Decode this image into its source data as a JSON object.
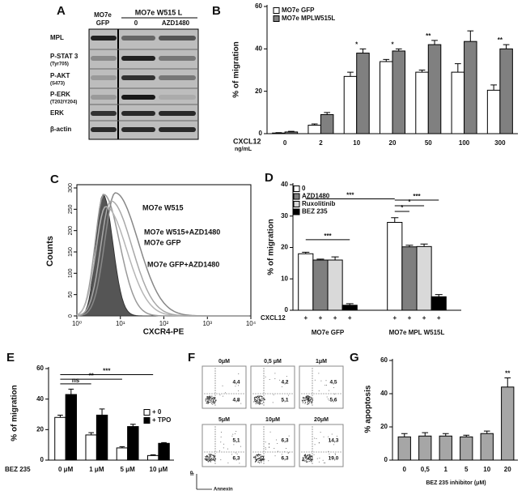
{
  "chart_data": [
    {
      "type": "bar",
      "panel": "B",
      "ylabel": "% of migration",
      "xlabel": "CXCL12",
      "xunit": "ng/mL",
      "categories": [
        "0",
        "2",
        "10",
        "20",
        "50",
        "100",
        "300"
      ],
      "series": [
        {
          "name": "MO7e GFP",
          "color": "#ffffff",
          "values": [
            0.3,
            4,
            27,
            34,
            29,
            29,
            20.5
          ],
          "errors": [
            0.2,
            0.6,
            2,
            1,
            1,
            4,
            2.5
          ]
        },
        {
          "name": "MO7e MPLW515L",
          "color": "#808080",
          "values": [
            0.8,
            9,
            38,
            39,
            42,
            43.5,
            40
          ],
          "errors": [
            0.3,
            1,
            2,
            1,
            2,
            5,
            2
          ]
        }
      ],
      "ylim": [
        0,
        60
      ],
      "yticks": [
        0,
        20,
        40,
        60
      ],
      "annotations": [
        {
          "text": "*",
          "category": "10"
        },
        {
          "text": "*",
          "category": "20"
        },
        {
          "text": "**",
          "category": "50"
        },
        {
          "text": "**",
          "category": "300"
        }
      ]
    },
    {
      "type": "bar",
      "panel": "D",
      "ylabel": "% of migration",
      "row_label": "CXCL12",
      "row_marks": [
        "+",
        "+",
        "+",
        "+",
        "+",
        "+",
        "+",
        "+"
      ],
      "categories": [
        "MO7e GFP",
        "MO7e MPL W515L"
      ],
      "series": [
        {
          "name": "0",
          "color": "#ffffff",
          "values": [
            18,
            28
          ],
          "errors": [
            0.5,
            1.5
          ]
        },
        {
          "name": "AZD1480",
          "color": "#7f7f7f",
          "values": [
            16,
            20.2
          ],
          "errors": [
            0.3,
            0.5
          ]
        },
        {
          "name": "Ruxolitinib",
          "color": "#d9d9d9",
          "values": [
            16,
            20.3
          ],
          "errors": [
            1,
            0.8
          ]
        },
        {
          "name": "BEZ 235",
          "color": "#000000",
          "values": [
            1.6,
            4.3
          ],
          "errors": [
            0.5,
            0.7
          ]
        }
      ],
      "ylim": [
        0,
        40
      ],
      "yticks": [
        0,
        10,
        20,
        30,
        40
      ],
      "annotations": [
        {
          "text": "***"
        },
        {
          "text": "***"
        },
        {
          "text": "*"
        },
        {
          "text": "*"
        },
        {
          "text": "***"
        }
      ]
    },
    {
      "type": "bar",
      "panel": "E",
      "ylabel": "% of migration",
      "xlabel": "BEZ 235",
      "categories": [
        "0 μM",
        "1 μM",
        "5 μM",
        "10 μM"
      ],
      "series": [
        {
          "name": "+ 0",
          "color": "#ffffff",
          "values": [
            28,
            16.5,
            8,
            3
          ],
          "errors": [
            1.5,
            1.5,
            0.8,
            0.5
          ]
        },
        {
          "name": "+ TPO",
          "color": "#000000",
          "values": [
            43,
            29.5,
            22,
            11
          ],
          "errors": [
            3.5,
            4,
            1.5,
            0.5
          ]
        }
      ],
      "ylim": [
        0,
        60
      ],
      "yticks": [
        0,
        20,
        40,
        60
      ],
      "annotations": [
        {
          "text": "ns"
        },
        {
          "text": "**"
        },
        {
          "text": "***"
        }
      ]
    },
    {
      "type": "bar",
      "panel": "G",
      "ylabel": "% apoptosis",
      "xlabel": "BEZ 235 inhibitor (μM)",
      "categories": [
        "0",
        "0,5",
        "1",
        "5",
        "10",
        "20"
      ],
      "values": [
        14,
        14.5,
        14.5,
        14,
        16,
        44
      ],
      "errors": [
        2,
        2,
        1.5,
        1,
        1.5,
        5.5
      ],
      "color": "#a6a6a6",
      "ylim": [
        0,
        60
      ],
      "yticks": [
        0,
        20,
        40,
        60
      ],
      "annotations": [
        {
          "text": "**",
          "category": "20"
        }
      ]
    }
  ],
  "blot": {
    "panel": "A",
    "gfp_label": [
      "MO7e",
      "GFP"
    ],
    "w515_label": "MO7e  W515 L",
    "lanes": [
      "0",
      "AZD1480"
    ],
    "rows": [
      {
        "name": "MPL"
      },
      {
        "name": "P-STAT 3",
        "site": "(Tyr705)"
      },
      {
        "name": "P-AKT",
        "site": "(S473)"
      },
      {
        "name": "P-ERK",
        "site": "(T202/Y204)"
      },
      {
        "name": "ERK"
      },
      {
        "name": "β-actin"
      }
    ]
  },
  "flow_histogram": {
    "panel": "C",
    "ylabel": "Counts",
    "xlabel": "CXCR4-PE",
    "log_x": true,
    "xlim": [
      1,
      10000
    ],
    "xticks": [
      {
        "value": 1,
        "label": "10⁰"
      },
      {
        "value": 10,
        "label": "10¹"
      },
      {
        "value": 100,
        "label": "10²"
      },
      {
        "value": 1000,
        "label": "10³"
      },
      {
        "value": 10000,
        "label": "10⁴"
      }
    ],
    "ylim": [
      0,
      300
    ],
    "yticks": [
      0,
      50,
      100,
      150,
      200,
      250,
      300
    ],
    "curves": [
      "MO7e W515",
      "MO7e W515+AZD1480",
      "MO7e GFP",
      "MO7e GFP+AZD1480"
    ]
  },
  "dot_plots": {
    "panel": "F",
    "ylabel": "IP",
    "xlabel": "Annexin",
    "plots": [
      {
        "title": "0μM",
        "upper": "4,4",
        "lower": "4,8"
      },
      {
        "title": "0,5 μM",
        "upper": "4,2",
        "lower": "5,1"
      },
      {
        "title": "1μM",
        "upper": "4,5",
        "lower": "5,6"
      },
      {
        "title": "5μM",
        "upper": "5,1",
        "lower": "6,3"
      },
      {
        "title": "10μM",
        "upper": "6,3",
        "lower": "6,3"
      },
      {
        "title": "20μM",
        "upper": "14,3",
        "lower": "19,0"
      }
    ]
  }
}
